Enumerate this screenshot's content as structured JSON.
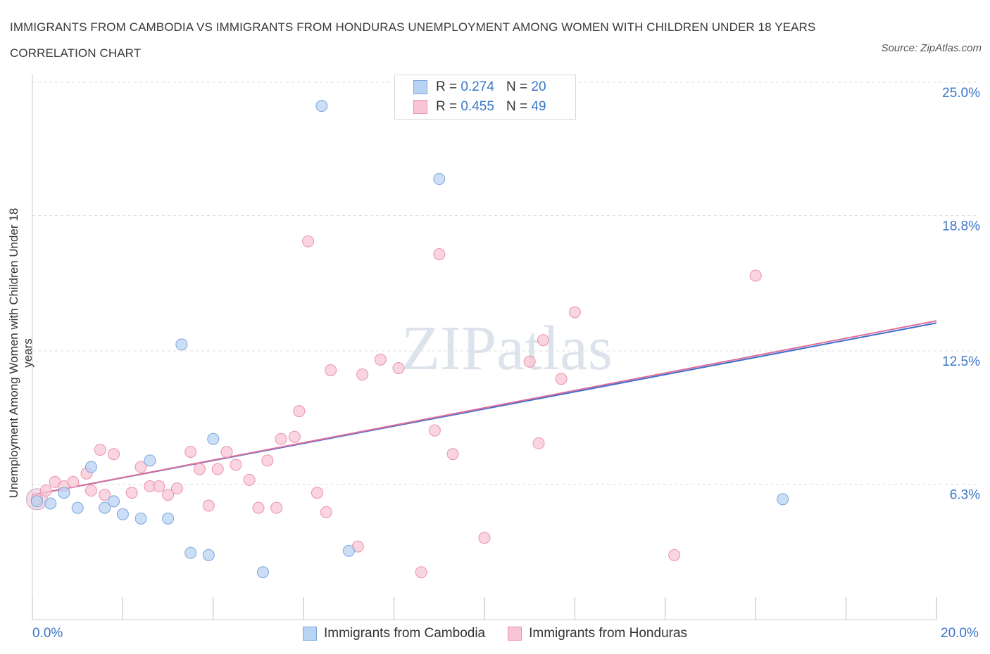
{
  "title": "IMMIGRANTS FROM CAMBODIA VS IMMIGRANTS FROM HONDURAS UNEMPLOYMENT AMONG WOMEN WITH CHILDREN UNDER 18 YEARS CORRELATION CHART",
  "source": "Source: ZipAtlas.com",
  "watermark": "ZIPatlas",
  "legend": {
    "rows": [
      {
        "r_label": "R =",
        "r_value": "0.274",
        "n_label": "N =",
        "n_value": "20"
      },
      {
        "r_label": "R =",
        "r_value": "0.455",
        "n_label": "N =",
        "n_value": "49"
      }
    ]
  },
  "colors": {
    "cambodia_fill": "#b9d3f3",
    "cambodia_stroke": "#7aa6de",
    "cambodia_line": "#3d6fd0",
    "honduras_fill": "#f8c5d4",
    "honduras_stroke": "#e993ae",
    "honduras_line": "#e0709a",
    "value_blue": "#3b76c9",
    "grid": "#dedede"
  },
  "chart_data": {
    "type": "scatter",
    "title": "IMMIGRANTS FROM CAMBODIA VS IMMIGRANTS FROM HONDURAS UNEMPLOYMENT AMONG WOMEN WITH CHILDREN UNDER 18 YEARS CORRELATION CHART",
    "xlabel": "",
    "ylabel": "Unemployment Among Women with Children Under 18 years",
    "xlim": [
      0,
      20
    ],
    "ylim": [
      0,
      25
    ],
    "x_tick_labels": [
      "0.0%",
      "20.0%"
    ],
    "y_tick_values": [
      6.3,
      12.5,
      18.8,
      25.0
    ],
    "y_tick_labels": [
      "6.3%",
      "12.5%",
      "18.8%",
      "25.0%"
    ],
    "grid": true,
    "legend_position": "top-center",
    "series": [
      {
        "name": "Immigrants from Cambodia",
        "r": 0.274,
        "n": 20,
        "points": [
          [
            0.1,
            5.5
          ],
          [
            0.4,
            5.4
          ],
          [
            0.7,
            5.9
          ],
          [
            1.0,
            5.2
          ],
          [
            1.3,
            7.1
          ],
          [
            1.6,
            5.2
          ],
          [
            1.8,
            5.5
          ],
          [
            2.0,
            4.9
          ],
          [
            2.4,
            4.7
          ],
          [
            2.6,
            7.4
          ],
          [
            3.0,
            4.7
          ],
          [
            3.3,
            12.8
          ],
          [
            3.5,
            3.1
          ],
          [
            3.9,
            3.0
          ],
          [
            4.0,
            8.4
          ],
          [
            5.1,
            2.2
          ],
          [
            6.4,
            23.9
          ],
          [
            7.0,
            3.2
          ],
          [
            9.0,
            20.5
          ],
          [
            16.6,
            5.6
          ]
        ],
        "trend": {
          "x": [
            0,
            20
          ],
          "y": [
            5.8,
            13.8
          ]
        }
      },
      {
        "name": "Immigrants from Honduras",
        "r": 0.455,
        "n": 49,
        "points": [
          [
            0.1,
            5.6
          ],
          [
            0.3,
            6.0
          ],
          [
            0.5,
            6.4
          ],
          [
            0.7,
            6.2
          ],
          [
            0.9,
            6.4
          ],
          [
            1.2,
            6.8
          ],
          [
            1.3,
            6.0
          ],
          [
            1.5,
            7.9
          ],
          [
            1.6,
            5.8
          ],
          [
            1.8,
            7.7
          ],
          [
            2.2,
            5.9
          ],
          [
            2.4,
            7.1
          ],
          [
            2.6,
            6.2
          ],
          [
            2.8,
            6.2
          ],
          [
            3.0,
            5.8
          ],
          [
            3.2,
            6.1
          ],
          [
            3.5,
            7.8
          ],
          [
            3.7,
            7.0
          ],
          [
            3.9,
            5.3
          ],
          [
            4.1,
            7.0
          ],
          [
            4.3,
            7.8
          ],
          [
            4.5,
            7.2
          ],
          [
            4.8,
            6.5
          ],
          [
            5.0,
            5.2
          ],
          [
            5.2,
            7.4
          ],
          [
            5.4,
            5.2
          ],
          [
            5.5,
            8.4
          ],
          [
            5.8,
            8.5
          ],
          [
            5.9,
            9.7
          ],
          [
            6.1,
            17.6
          ],
          [
            6.3,
            5.9
          ],
          [
            6.5,
            5.0
          ],
          [
            6.6,
            11.6
          ],
          [
            7.2,
            3.4
          ],
          [
            7.3,
            11.4
          ],
          [
            7.7,
            12.1
          ],
          [
            8.1,
            11.7
          ],
          [
            8.6,
            2.2
          ],
          [
            8.9,
            8.8
          ],
          [
            9.0,
            17.0
          ],
          [
            9.3,
            7.7
          ],
          [
            10.0,
            3.8
          ],
          [
            11.0,
            12.0
          ],
          [
            11.2,
            8.2
          ],
          [
            11.3,
            13.0
          ],
          [
            11.7,
            11.2
          ],
          [
            12.0,
            14.3
          ],
          [
            14.2,
            3.0
          ],
          [
            16.0,
            16.0
          ]
        ],
        "trend": {
          "x": [
            0,
            20
          ],
          "y": [
            5.8,
            13.9
          ]
        }
      }
    ]
  }
}
